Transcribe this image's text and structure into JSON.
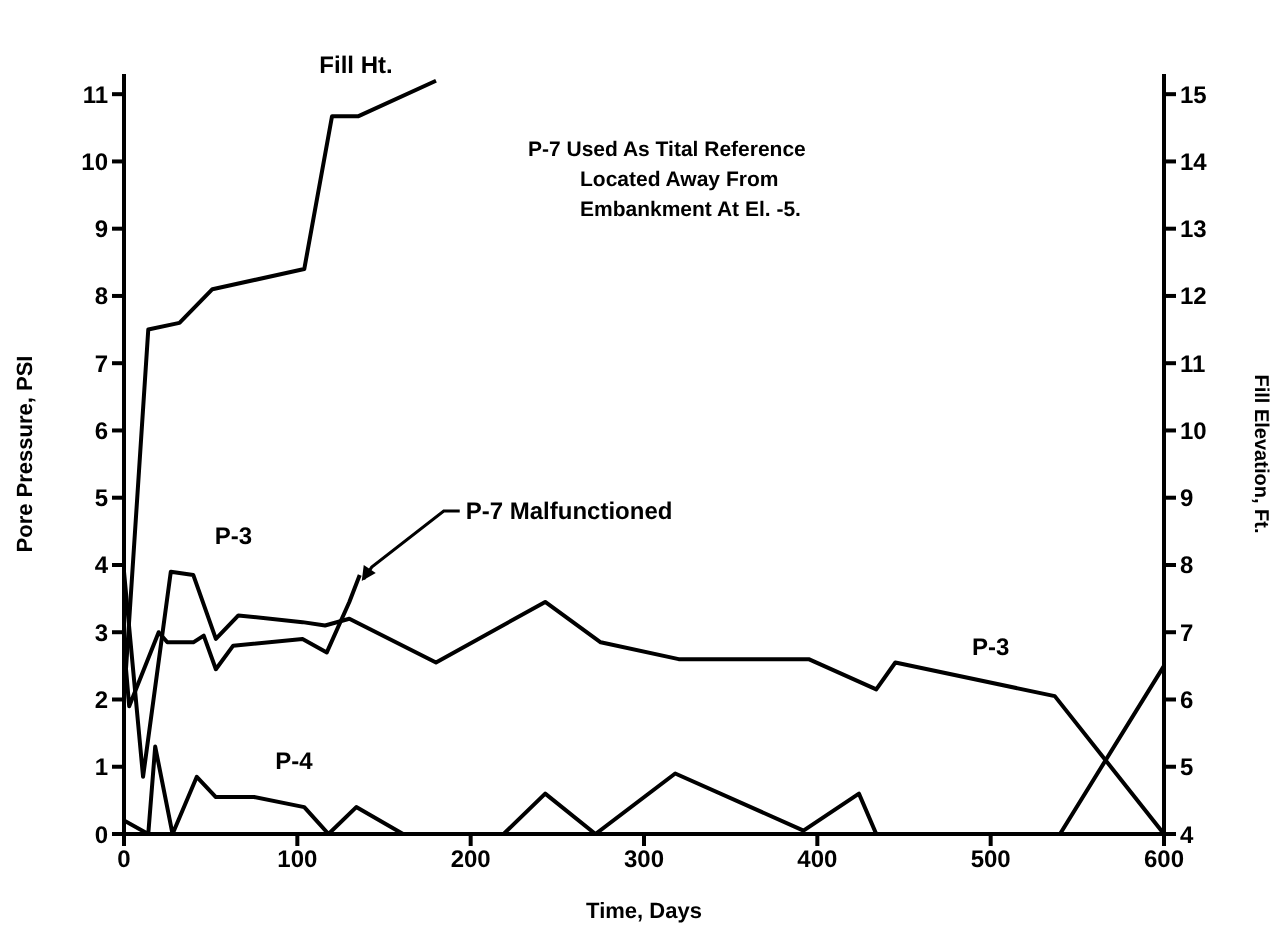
{
  "chart_data": {
    "type": "line",
    "xlabel": "Time, Days",
    "ylabel": "Pore Pressure, PSI",
    "y2label": "Fill Elevation, Ft.",
    "xlim": [
      0,
      600
    ],
    "xticks": [
      0,
      100,
      200,
      300,
      400,
      500,
      600
    ],
    "ylim": [
      0,
      11.3
    ],
    "yticks": [
      0,
      1,
      2,
      3,
      4,
      5,
      6,
      7,
      8,
      9,
      10,
      11
    ],
    "y2lim": [
      4,
      15.3
    ],
    "y2ticks": [
      4,
      5,
      6,
      7,
      8,
      9,
      10,
      11,
      12,
      13,
      14,
      15
    ],
    "grid": false,
    "marker": "none",
    "line_style": "solid",
    "series": [
      {
        "color": "#000000",
        "x": [
          0,
          11,
          27,
          40,
          53,
          66,
          103,
          116,
          130,
          180,
          243,
          275,
          320,
          395,
          434,
          445,
          537,
          600
        ],
        "values": [
          3.9,
          0.85,
          3.9,
          3.85,
          2.9,
          3.25,
          3.15,
          3.1,
          3.2,
          2.55,
          3.45,
          2.85,
          2.6,
          2.6,
          2.15,
          2.55,
          2.05,
          0
        ]
      },
      {
        "color": "#000000",
        "x": [
          0,
          3,
          20,
          25,
          40,
          46,
          53,
          63,
          103,
          117,
          130,
          136
        ],
        "values": [
          2.8,
          1.9,
          3.0,
          2.85,
          2.85,
          2.95,
          2.45,
          2.8,
          2.9,
          2.7,
          3.45,
          3.85
        ]
      },
      {
        "color": "#000000",
        "x": [
          0,
          14,
          18,
          28,
          42,
          53,
          75,
          104,
          118,
          134,
          161,
          219,
          243,
          272,
          318,
          392,
          424,
          434,
          540,
          600
        ],
        "values": [
          0.2,
          0,
          1.3,
          0,
          0.85,
          0.55,
          0.55,
          0.4,
          0,
          0.4,
          0,
          0,
          0.6,
          0,
          0.9,
          0.05,
          0.6,
          0,
          0,
          2.5
        ]
      },
      {
        "name": "Fill Ht.",
        "color": "#000000",
        "axis": "y2",
        "x": [
          0,
          14,
          32,
          51,
          104,
          120,
          135,
          180
        ],
        "values": [
          6,
          11.5,
          11.6,
          12.1,
          12.4,
          14.67,
          14.67,
          15.2
        ]
      }
    ],
    "annotations": [
      {
        "text": "P-3",
        "x": 27,
        "y": 3.9
      },
      {
        "text": "P-3",
        "x": 500,
        "y": 2.25
      },
      {
        "text": "P-4",
        "x": 75,
        "y": 0.55
      },
      {
        "text": "P-7 Malfunctioned",
        "x": 136,
        "y": 3.85
      },
      "P-7 Used As Tital Reference Located Away From Embankment At El. -5."
    ]
  }
}
